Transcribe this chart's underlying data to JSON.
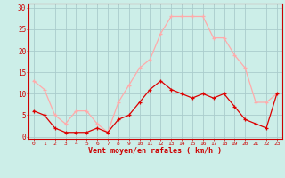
{
  "hours": [
    0,
    1,
    2,
    3,
    4,
    5,
    6,
    7,
    8,
    9,
    10,
    11,
    12,
    13,
    14,
    15,
    16,
    17,
    18,
    19,
    20,
    21,
    22,
    23
  ],
  "wind_avg": [
    6,
    5,
    2,
    1,
    1,
    1,
    2,
    1,
    4,
    5,
    8,
    11,
    13,
    11,
    10,
    9,
    10,
    9,
    10,
    7,
    4,
    3,
    2,
    10
  ],
  "wind_gust": [
    13,
    11,
    5,
    3,
    6,
    6,
    3,
    1,
    8,
    12,
    16,
    18,
    24,
    28,
    28,
    28,
    28,
    23,
    23,
    19,
    16,
    8,
    8,
    10
  ],
  "avg_color": "#dd0000",
  "gust_color": "#ffaaaa",
  "bg_color": "#cceee8",
  "grid_color": "#aacccc",
  "xlabel": "Vent moyen/en rafales ( km/h )",
  "xlabel_color": "#cc0000",
  "yticks": [
    0,
    5,
    10,
    15,
    20,
    25,
    30
  ],
  "ylim": [
    -0.5,
    31
  ],
  "xlim": [
    -0.5,
    23.5
  ],
  "tick_color": "#cc0000",
  "spine_color": "#cc0000"
}
